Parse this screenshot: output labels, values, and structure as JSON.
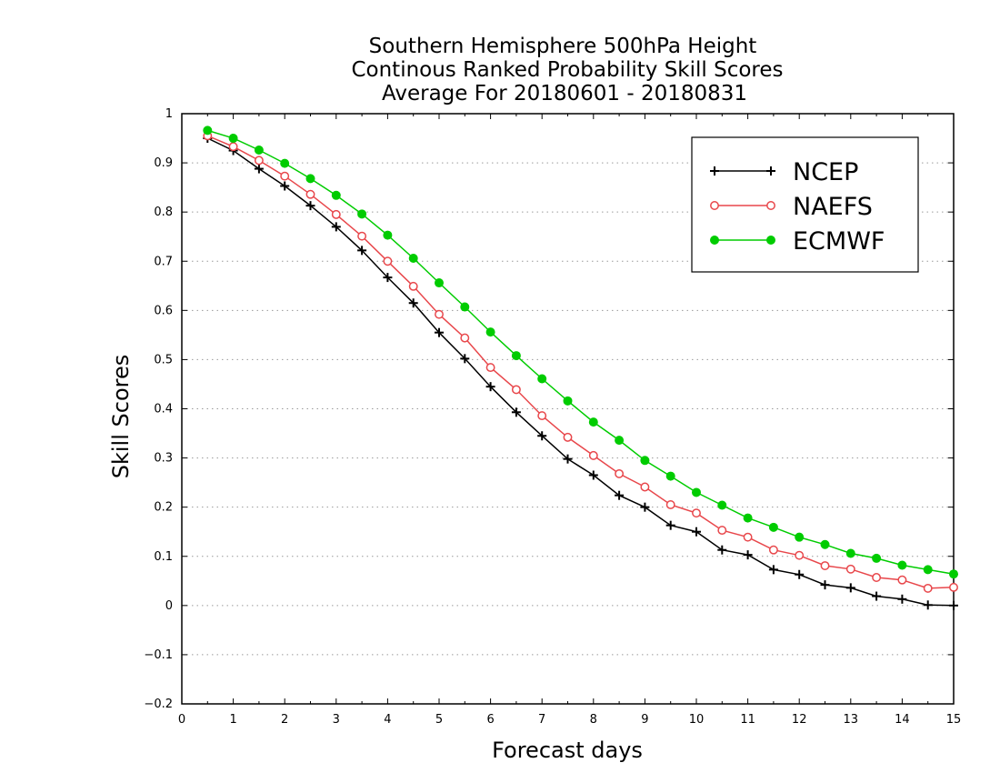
{
  "chart_data": {
    "type": "line",
    "title": [
      "Southern Hemisphere 500hPa Height",
      "Continous Ranked Probability Skill Scores",
      "Average For 20180601 - 20180831"
    ],
    "xlabel": "Forecast days",
    "ylabel": "Skill Scores",
    "xlim": [
      0,
      15
    ],
    "ylim": [
      -0.2,
      1
    ],
    "x_ticks": [
      "0",
      "1",
      "2",
      "3",
      "4",
      "5",
      "6",
      "7",
      "8",
      "9",
      "10",
      "11",
      "12",
      "13",
      "14",
      "15"
    ],
    "y_ticks": [
      "−0.2",
      "−0.1",
      "0",
      "0.1",
      "0.2",
      "0.3",
      "0.4",
      "0.5",
      "0.6",
      "0.7",
      "0.8",
      "0.9",
      "1"
    ],
    "grid": "horizontal dotted",
    "legend_position": "top-right",
    "x": [
      0.5,
      1,
      1.5,
      2,
      2.5,
      3,
      3.5,
      4,
      4.5,
      5,
      5.5,
      6,
      6.5,
      7,
      7.5,
      8,
      8.5,
      9,
      9.5,
      10,
      10.5,
      11,
      11.5,
      12,
      12.5,
      13,
      13.5,
      14,
      14.5,
      15
    ],
    "series": [
      {
        "name": "NCEP",
        "color": "#000000",
        "marker": "plus",
        "values": [
          0.95,
          0.925,
          0.888,
          0.853,
          0.813,
          0.77,
          0.722,
          0.667,
          0.615,
          0.555,
          0.502,
          0.445,
          0.393,
          0.345,
          0.298,
          0.265,
          0.224,
          0.2,
          0.163,
          0.15,
          0.113,
          0.103,
          0.073,
          0.063,
          0.042,
          0.036,
          0.019,
          0.013,
          0.001,
          0.0
        ]
      },
      {
        "name": "NAEFS",
        "color": "#e8474b",
        "marker": "open-circle",
        "values": [
          0.955,
          0.933,
          0.905,
          0.873,
          0.836,
          0.795,
          0.751,
          0.7,
          0.649,
          0.592,
          0.544,
          0.484,
          0.439,
          0.386,
          0.342,
          0.305,
          0.268,
          0.241,
          0.205,
          0.188,
          0.153,
          0.139,
          0.113,
          0.102,
          0.081,
          0.074,
          0.057,
          0.052,
          0.035,
          0.037
        ]
      },
      {
        "name": "ECMWF",
        "color": "#00cc00",
        "marker": "filled-circle",
        "values": [
          0.966,
          0.95,
          0.926,
          0.899,
          0.868,
          0.834,
          0.796,
          0.753,
          0.706,
          0.656,
          0.607,
          0.556,
          0.508,
          0.461,
          0.416,
          0.373,
          0.336,
          0.295,
          0.263,
          0.23,
          0.204,
          0.178,
          0.159,
          0.139,
          0.124,
          0.106,
          0.096,
          0.082,
          0.073,
          0.064
        ]
      }
    ]
  }
}
